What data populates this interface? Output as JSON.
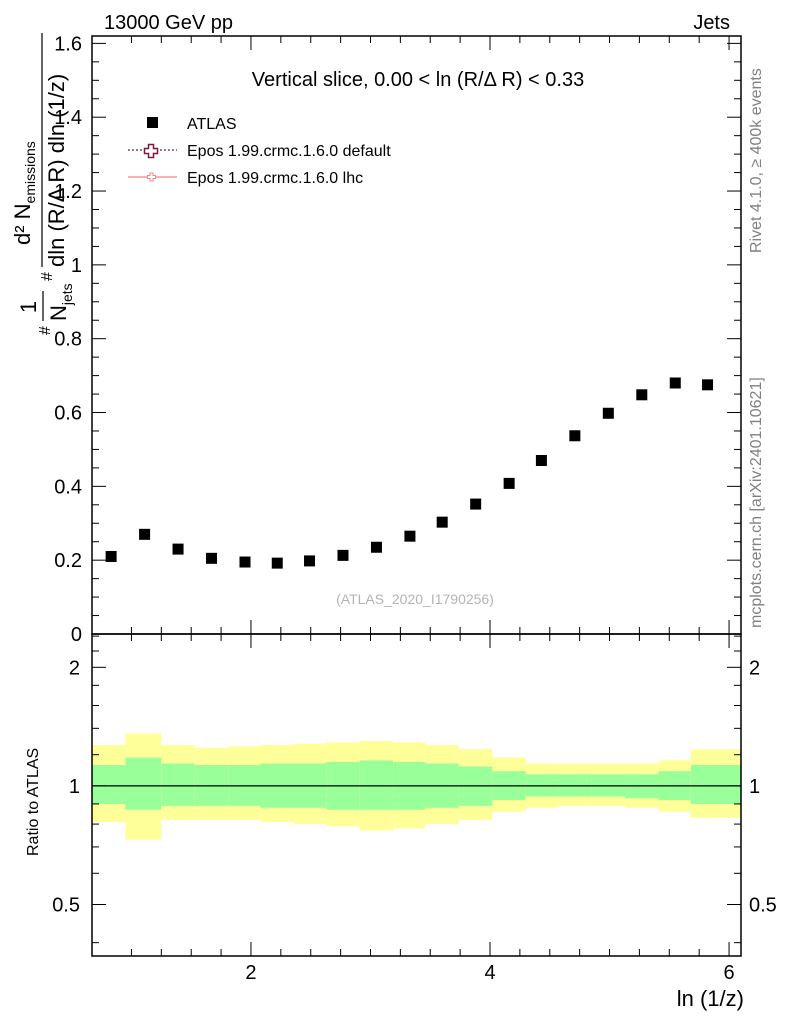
{
  "header": {
    "left": "13000 GeV pp",
    "right": "Jets"
  },
  "side_labels": {
    "rivet": "Rivet 4.1.0, ≥ 400k events",
    "mcplots": "mcplots.cern.ch [arXiv:2401.10621]"
  },
  "colors": {
    "atlas": "#000000",
    "epos_default": "#7a1b3c",
    "epos_lhc": "#ee8888",
    "band_outer": "#ffff99",
    "band_inner": "#99ff99",
    "ref_line": "#000000"
  },
  "chart_data": [
    {
      "type": "scatter",
      "title": "Vertical slice, 0.00 < ln (R/Δ R) < 0.33",
      "watermark": "(ATLAS_2020_I1790256)",
      "ylabel": {
        "frac_num": "1",
        "frac_den": "N",
        "frac_den_sub": "jets",
        "d2": "d² N",
        "d2_sub": "emissions",
        "denominator": "dln (R/Δ R) dln (1/z)",
        "hash": "#"
      },
      "xlabel": "ln (1/z)",
      "xlim": [
        0.67,
        6.1
      ],
      "ylim": [
        0,
        1.62
      ],
      "x_ticks": [
        2,
        4,
        6
      ],
      "y_ticks": [
        0,
        0.2,
        0.4,
        0.6,
        0.8,
        1,
        1.2,
        1.4,
        1.6
      ],
      "y_tick_labels": [
        "0",
        "0.2",
        "0.4",
        "0.6",
        "0.8",
        "1",
        "1.2",
        "1.4",
        "1.6"
      ],
      "legend_position": "top-left",
      "legend": [
        {
          "name": "ATLAS",
          "marker": "square"
        },
        {
          "name": "Epos 1.99.crmc.1.6.0 default",
          "marker": "open-cross-dotted"
        },
        {
          "name": "Epos 1.99.crmc.1.6.0 lhc",
          "marker": "line-small"
        }
      ],
      "series": [
        {
          "name": "ATLAS",
          "x": [
            0.83,
            1.11,
            1.39,
            1.67,
            1.95,
            2.22,
            2.49,
            2.77,
            3.05,
            3.33,
            3.6,
            3.88,
            4.16,
            4.43,
            4.71,
            4.99,
            5.27,
            5.55,
            5.82
          ],
          "y": [
            0.21,
            0.27,
            0.23,
            0.205,
            0.195,
            0.192,
            0.198,
            0.213,
            0.235,
            0.265,
            0.303,
            0.352,
            0.408,
            0.47,
            0.537,
            0.598,
            0.648,
            0.68,
            0.675
          ]
        }
      ]
    },
    {
      "type": "area",
      "ylabel": "Ratio to ATLAS",
      "xlim": [
        0.67,
        6.1
      ],
      "ylim": [
        0.37,
        2.43
      ],
      "log_y": true,
      "y_ticks": [
        0.5,
        1,
        2
      ],
      "y_tick_labels": [
        "0.5",
        "1",
        "2"
      ],
      "x_ticks": [
        2,
        4,
        6
      ],
      "x_tick_labels": [
        "2",
        "4",
        "6"
      ],
      "ref_line": 1,
      "bins": [
        {
          "lo": 0.67,
          "hi": 0.95,
          "inner": [
            0.9,
            1.13
          ],
          "outer": [
            0.81,
            1.27
          ]
        },
        {
          "lo": 0.95,
          "hi": 1.25,
          "inner": [
            0.87,
            1.18
          ],
          "outer": [
            0.73,
            1.36
          ]
        },
        {
          "lo": 1.25,
          "hi": 1.53,
          "inner": [
            0.89,
            1.14
          ],
          "outer": [
            0.82,
            1.27
          ]
        },
        {
          "lo": 1.53,
          "hi": 1.81,
          "inner": [
            0.89,
            1.13
          ],
          "outer": [
            0.82,
            1.25
          ]
        },
        {
          "lo": 1.81,
          "hi": 2.08,
          "inner": [
            0.89,
            1.13
          ],
          "outer": [
            0.82,
            1.26
          ]
        },
        {
          "lo": 2.08,
          "hi": 2.36,
          "inner": [
            0.88,
            1.14
          ],
          "outer": [
            0.81,
            1.27
          ]
        },
        {
          "lo": 2.36,
          "hi": 2.63,
          "inner": [
            0.88,
            1.14
          ],
          "outer": [
            0.8,
            1.28
          ]
        },
        {
          "lo": 2.63,
          "hi": 2.91,
          "inner": [
            0.87,
            1.15
          ],
          "outer": [
            0.79,
            1.29
          ]
        },
        {
          "lo": 2.91,
          "hi": 3.19,
          "inner": [
            0.87,
            1.16
          ],
          "outer": [
            0.77,
            1.3
          ]
        },
        {
          "lo": 3.19,
          "hi": 3.46,
          "inner": [
            0.87,
            1.15
          ],
          "outer": [
            0.78,
            1.29
          ]
        },
        {
          "lo": 3.46,
          "hi": 3.74,
          "inner": [
            0.88,
            1.14
          ],
          "outer": [
            0.8,
            1.27
          ]
        },
        {
          "lo": 3.74,
          "hi": 4.02,
          "inner": [
            0.89,
            1.12
          ],
          "outer": [
            0.82,
            1.24
          ]
        },
        {
          "lo": 4.02,
          "hi": 4.3,
          "inner": [
            0.92,
            1.09
          ],
          "outer": [
            0.86,
            1.18
          ]
        },
        {
          "lo": 4.3,
          "hi": 4.57,
          "inner": [
            0.94,
            1.07
          ],
          "outer": [
            0.88,
            1.14
          ]
        },
        {
          "lo": 4.57,
          "hi": 4.85,
          "inner": [
            0.94,
            1.07
          ],
          "outer": [
            0.89,
            1.14
          ]
        },
        {
          "lo": 4.85,
          "hi": 5.13,
          "inner": [
            0.94,
            1.07
          ],
          "outer": [
            0.89,
            1.14
          ]
        },
        {
          "lo": 5.13,
          "hi": 5.41,
          "inner": [
            0.93,
            1.07
          ],
          "outer": [
            0.88,
            1.14
          ]
        },
        {
          "lo": 5.41,
          "hi": 5.68,
          "inner": [
            0.92,
            1.09
          ],
          "outer": [
            0.86,
            1.16
          ]
        },
        {
          "lo": 5.68,
          "hi": 6.1,
          "inner": [
            0.9,
            1.13
          ],
          "outer": [
            0.83,
            1.24
          ]
        }
      ]
    }
  ]
}
